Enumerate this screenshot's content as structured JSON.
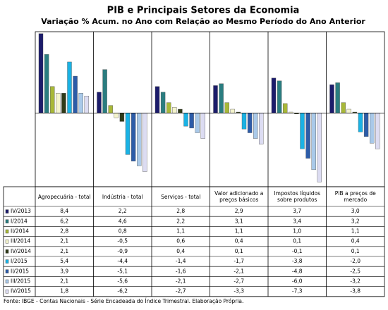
{
  "chart_data": {
    "type": "bar",
    "title": "PIB e Principais Setores da Economia",
    "subtitle": "Variação % Acum. no Ano com Relação ao Mesmo Período do Ano Anterior",
    "categories": [
      "Agropecuária - total",
      "Indústria - total",
      "Serviços - total",
      "Valor adicionado a preços básicos",
      "Impostos líquidos sobre produtos",
      "PIB a preços de mercado"
    ],
    "ylim": [
      -7.8,
      8.6
    ],
    "series": [
      {
        "name": "IV/2013",
        "color": "#1c1c6b",
        "values": [
          8.4,
          2.2,
          2.8,
          2.9,
          3.7,
          3.0
        ],
        "value_labels": [
          "8,4",
          "2,2",
          "2,8",
          "2,9",
          "3,7",
          "3,0"
        ]
      },
      {
        "name": "I/2014",
        "color": "#2a7d80",
        "values": [
          6.2,
          4.6,
          2.2,
          3.1,
          3.4,
          3.2
        ],
        "value_labels": [
          "6,2",
          "4,6",
          "2,2",
          "3,1",
          "3,4",
          "3,2"
        ]
      },
      {
        "name": "II/2014",
        "color": "#a8b838",
        "values": [
          2.8,
          0.8,
          1.1,
          1.1,
          1.0,
          1.1
        ],
        "value_labels": [
          "2,8",
          "0,8",
          "1,1",
          "1,1",
          "1,0",
          "1,1"
        ]
      },
      {
        "name": "III/2014",
        "color": "#f4f4cc",
        "values": [
          2.1,
          -0.5,
          0.6,
          0.4,
          0.1,
          0.4
        ],
        "value_labels": [
          "2,1",
          "-0,5",
          "0,6",
          "0,4",
          "0,1",
          "0,4"
        ]
      },
      {
        "name": "IV/2014",
        "color": "#2f3a18",
        "values": [
          2.1,
          -0.9,
          0.4,
          0.1,
          -0.1,
          0.1
        ],
        "value_labels": [
          "2,1",
          "-0,9",
          "0,4",
          "0,1",
          "-0,1",
          "0,1"
        ]
      },
      {
        "name": "I/2015",
        "color": "#1ab2e4",
        "values": [
          5.4,
          -4.4,
          -1.4,
          -1.7,
          -3.8,
          -2.0
        ],
        "value_labels": [
          "5,4",
          "-4,4",
          "-1,4",
          "-1,7",
          "-3,8",
          "-2,0"
        ]
      },
      {
        "name": "II/2015",
        "color": "#2d5ca8",
        "values": [
          3.9,
          -5.1,
          -1.6,
          -2.1,
          -4.8,
          -2.5
        ],
        "value_labels": [
          "3,9",
          "-5,1",
          "-1,6",
          "-2,1",
          "-4,8",
          "-2,5"
        ]
      },
      {
        "name": "III/2015",
        "color": "#a9c9e9",
        "values": [
          2.1,
          -5.6,
          -2.1,
          -2.7,
          -6.0,
          -3.2
        ],
        "value_labels": [
          "2,1",
          "-5,6",
          "-2,1",
          "-2,7",
          "-6,0",
          "-3,2"
        ]
      },
      {
        "name": "IV/2015",
        "color": "#dcdcf2",
        "values": [
          1.8,
          -6.2,
          -2.7,
          -3.3,
          -7.3,
          -3.8
        ],
        "value_labels": [
          "1,8",
          "-6,2",
          "-2,7",
          "-3,3",
          "-7,3",
          "-3,8"
        ]
      }
    ],
    "source": "Fonte: IBGE - Contas Nacionais - Série Encadeada do Índice Trimestral. Elaboração Própria."
  }
}
